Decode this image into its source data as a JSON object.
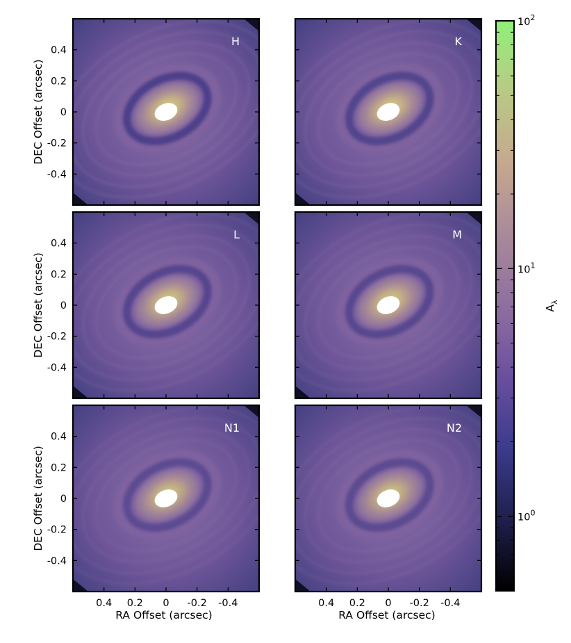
{
  "chart_data": {
    "type": "heatmap",
    "panels": [
      {
        "label": "H",
        "rings": 1.0
      },
      {
        "label": "K",
        "rings": 0.88
      },
      {
        "label": "L",
        "rings": 0.82
      },
      {
        "label": "M",
        "rings": 0.78
      },
      {
        "label": "N1",
        "rings": 0.68
      },
      {
        "label": "N2",
        "rings": 0.72
      }
    ],
    "xlabel": "RA Offset (arcsec)",
    "ylabel": "DEC Offset (arcsec)",
    "x_ticks": [
      "0.4",
      "0.2",
      "0",
      "-0.2",
      "-0.4"
    ],
    "y_ticks": [
      "0.4",
      "0.2",
      "0",
      "-0.2",
      "-0.4"
    ],
    "xlim": [
      0.6,
      -0.6
    ],
    "ylim": [
      -0.6,
      0.6
    ],
    "colorbar": {
      "label": "A",
      "label_subscript": "λ",
      "scale": "log",
      "range": [
        0.5,
        100
      ],
      "ticks": [
        {
          "base": "10",
          "exp": "2"
        },
        {
          "base": "10",
          "exp": "1"
        },
        {
          "base": "10",
          "exp": "0"
        }
      ],
      "colormap": [
        "#000000",
        "#1f1f4d",
        "#3b3b8c",
        "#6a4f9e",
        "#8f6fa0",
        "#a9899a",
        "#c6a88e",
        "#b9c986",
        "#90f07a"
      ]
    }
  }
}
